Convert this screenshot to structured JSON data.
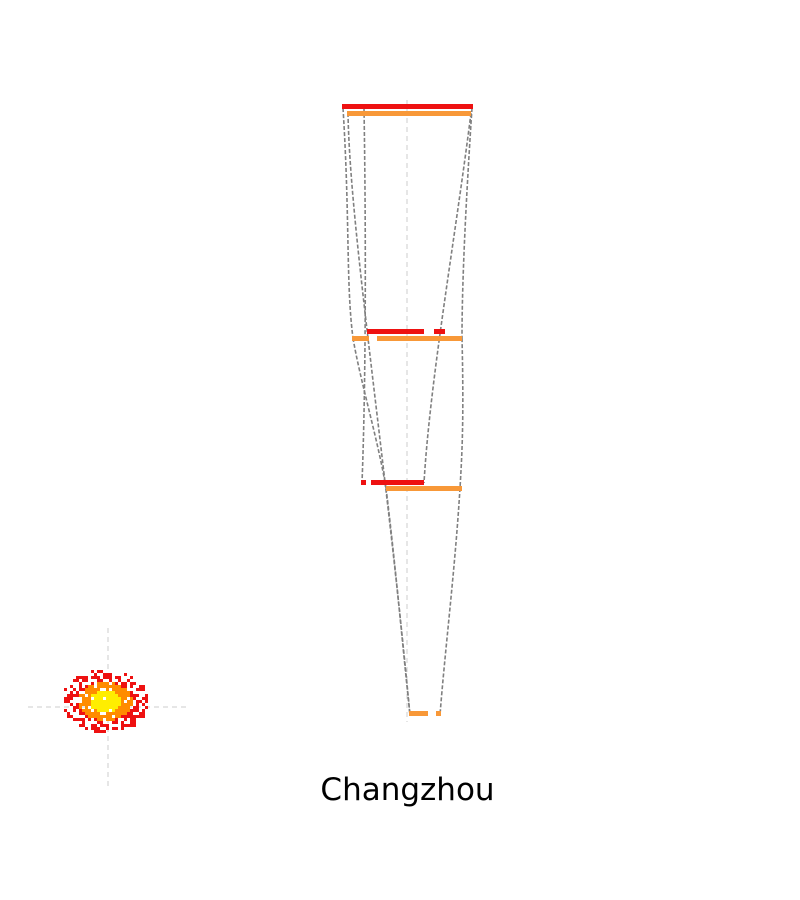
{
  "title": "Changzhou",
  "colors": {
    "primary_bar": "#ee1111",
    "secondary_bar": "#f89838",
    "connector": "#808080",
    "axis_guide": "#cccccc",
    "blob_outer": "#ee1111",
    "blob_mid": "#ff8c00",
    "blob_inner": "#ffee00"
  }
}
